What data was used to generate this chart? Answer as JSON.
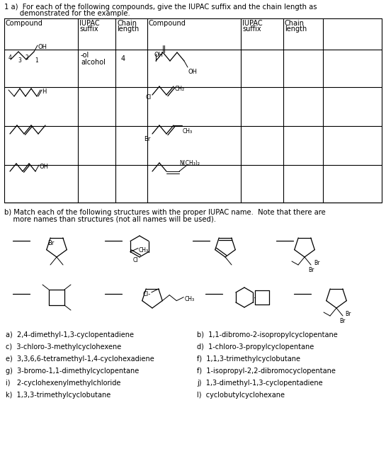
{
  "bg_color": "#ffffff",
  "text_color": "#000000",
  "title_line1": "1 a)  For each of the following compounds, give the IUPAC suffix and the chain length as",
  "title_line2": "       demonstrated for the example.",
  "section_b_line1": "b) Match each of the following structures with the proper IUPAC name.  Note that there are",
  "section_b_line2": "    more names than structures (not all names will be used).",
  "left_names": [
    "a)  2,4-dimethyl-1,3-cyclopentadiene",
    "c)  3-chloro-3-methylcyclohexene",
    "e)  3,3,6,6-tetramethyl-1,4-cyclohexadiene",
    "g)  3-bromo-1,1-dimethylcyclopentane",
    "i)   2-cyclohexenylmethylchloride",
    "k)  1,3,3-trimethylcyclobutane"
  ],
  "right_names": [
    "b)  1,1-dibromo-2-isopropylcyclopentane",
    "d)  1-chloro-3-propylcyclopentane",
    "f)  1,1,3-trimethylcyclobutane",
    "f)  1-isopropyl-2,2-dibromocyclopentane",
    "j)  1,3-dimethyl-1,3-cyclopentadiene",
    "l)  cyclobutylcyclohexane"
  ]
}
